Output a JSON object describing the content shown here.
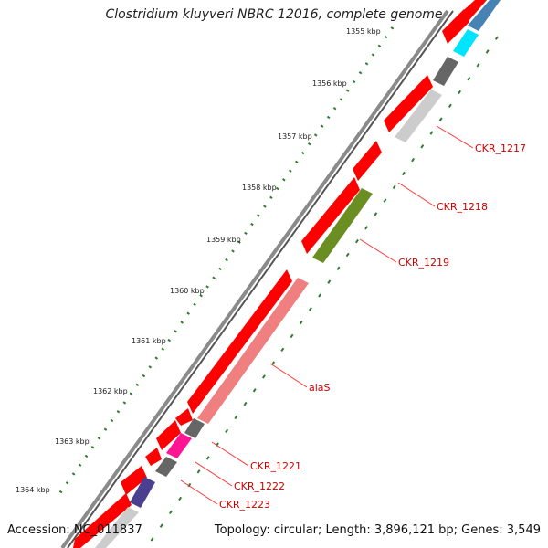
{
  "header": {
    "title": "Clostridium kluyveri NBRC 12016, complete genome"
  },
  "footer": {
    "accession": "Accession: NC_011837",
    "summary": "Topology: circular; Length: 3,896,121 bp; Genes: 3,549"
  },
  "scale_ticks": [
    "1355 kbp",
    "1356 kbp",
    "1357 kbp",
    "1358 kbp",
    "1359 kbp",
    "1360 kbp",
    "1361 kbp",
    "1362 kbp",
    "1363 kbp",
    "1364 kbp"
  ],
  "gene_labels": [
    "CKR_1217",
    "CKR_1218",
    "CKR_1219",
    "alaS",
    "CKR_1221",
    "CKR_1222",
    "CKR_1223"
  ],
  "colors": {
    "backbone": "#8a8a8a",
    "tick": "#2e7d2e",
    "forward_gene": "#ff0000",
    "label": "#cc0000",
    "leader": "#ff3333",
    "gene_gray": "#cccccc",
    "gene_darkgray": "#666666",
    "gene_olive": "#6b8e23",
    "gene_pink": "#f08080",
    "gene_magenta": "#ff1493",
    "gene_navy": "#4b3f8f",
    "gene_cyan": "#00e5ff",
    "gene_steel": "#4682b4"
  }
}
